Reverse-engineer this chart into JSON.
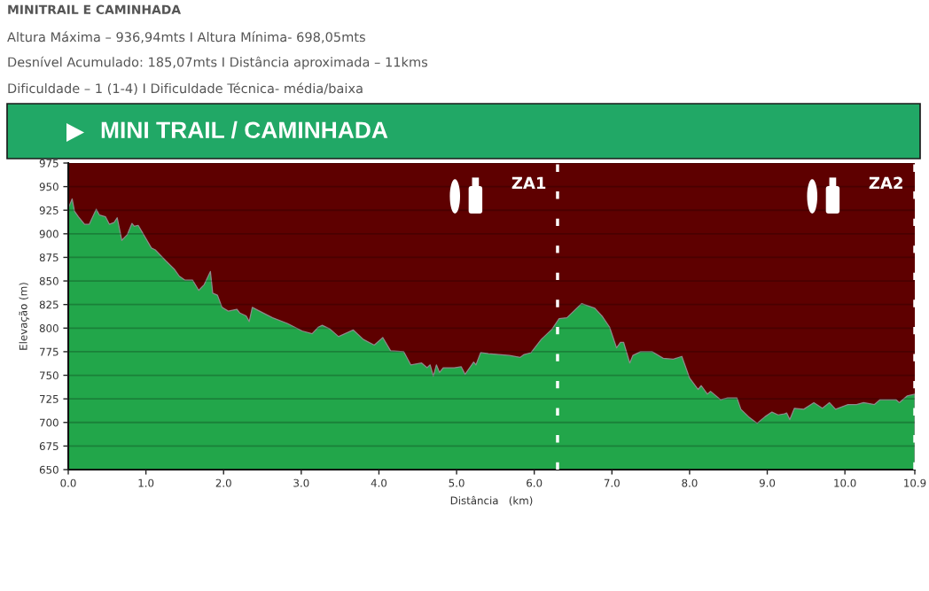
{
  "chart_data": {
    "type": "area",
    "title": "MINITRAIL E CAMINHADA",
    "subtitle": "MINI TRAIL / CAMINHADA",
    "annotations": [
      "Altura Máxima – 936,94mts I Altura Mínima- 698,05mts",
      "Desnível Acumulado: 185,07mts I Distância aproximada – 11kms",
      "Dificuldade – 1 (1-4) I Dificuldade Técnica- média/baixa"
    ],
    "xlabel": "Distância   (km)",
    "ylabel": "Elevação (m)",
    "x": [
      0.0,
      0.05,
      0.08,
      0.13,
      0.21,
      0.27,
      0.36,
      0.4,
      0.48,
      0.53,
      0.59,
      0.63,
      0.69,
      0.76,
      0.82,
      0.85,
      0.9,
      1.07,
      1.12,
      1.26,
      1.37,
      1.43,
      1.5,
      1.6,
      1.68,
      1.75,
      1.83,
      1.86,
      1.92,
      1.98,
      2.06,
      2.17,
      2.21,
      2.29,
      2.33,
      2.37,
      2.44,
      2.63,
      2.82,
      3.01,
      3.14,
      3.22,
      3.27,
      3.37,
      3.48,
      3.67,
      3.8,
      3.94,
      4.05,
      4.15,
      4.32,
      4.41,
      4.55,
      4.62,
      4.66,
      4.7,
      4.74,
      4.78,
      4.83,
      4.97,
      5.06,
      5.11,
      5.22,
      5.25,
      5.31,
      5.41,
      5.68,
      5.82,
      5.87,
      5.96,
      6.09,
      6.23,
      6.32,
      6.42,
      6.61,
      6.78,
      6.88,
      6.97,
      7.06,
      7.11,
      7.15,
      7.23,
      7.27,
      7.37,
      7.52,
      7.66,
      7.79,
      7.9,
      8.0,
      8.11,
      8.15,
      8.23,
      8.27,
      8.4,
      8.49,
      8.61,
      8.66,
      8.76,
      8.87,
      8.97,
      9.06,
      9.14,
      9.22,
      9.25,
      9.29,
      9.35,
      9.47,
      9.6,
      9.71,
      9.8,
      9.88,
      10.04,
      10.15,
      10.24,
      10.38,
      10.45,
      10.66,
      10.7,
      10.8,
      10.9
    ],
    "series": [
      {
        "color": "#22a64a",
        "values": [
          927,
          937,
          924,
          918,
          910,
          910,
          926,
          920,
          918,
          910,
          912,
          917,
          893,
          899,
          911,
          908,
          909,
          885,
          883,
          871,
          862,
          855,
          851,
          851,
          840,
          846,
          860,
          837,
          835,
          822,
          818,
          820,
          816,
          813,
          807,
          822,
          819,
          811,
          805,
          797,
          794,
          801,
          803,
          799,
          791,
          798,
          788,
          782,
          790,
          776,
          775,
          761,
          763,
          758,
          761,
          749,
          761,
          753,
          758,
          758,
          759,
          751,
          764,
          761,
          774,
          773,
          771,
          769,
          772,
          774,
          788,
          799,
          810,
          811,
          826,
          821,
          812,
          801,
          779,
          785,
          785,
          763,
          771,
          775,
          775,
          768,
          767,
          770,
          747,
          735,
          739,
          730,
          733,
          724,
          726,
          726,
          714,
          706,
          699,
          706,
          711,
          708,
          709,
          710,
          703,
          715,
          714,
          721,
          715,
          721,
          714,
          719,
          719,
          721,
          719,
          724,
          724,
          721,
          728,
          730
        ]
      }
    ],
    "xlim": [
      0,
      10.9
    ],
    "ylim": [
      650,
      975
    ],
    "xticks": [
      {
        "value": 0,
        "label": "0.0"
      },
      {
        "value": 1,
        "label": "1.0"
      },
      {
        "value": 2,
        "label": "2.0"
      },
      {
        "value": 3,
        "label": "3.0"
      },
      {
        "value": 4,
        "label": "4.0"
      },
      {
        "value": 5,
        "label": "5.0"
      },
      {
        "value": 6,
        "label": "6.0"
      },
      {
        "value": 7,
        "label": "7.0"
      },
      {
        "value": 8,
        "label": "8.0"
      },
      {
        "value": 9,
        "label": "9.0"
      },
      {
        "value": 10,
        "label": "10.0"
      },
      10.9
    ],
    "yticks": [
      650,
      675,
      700,
      725,
      750,
      775,
      800,
      825,
      850,
      875,
      900,
      925,
      950,
      975
    ],
    "grid": "y",
    "ref_lines": [
      {
        "axis": "x",
        "value": 6.3,
        "label": "ZA1",
        "color": "#ffffff",
        "line_style": "dashed"
      },
      {
        "axis": "x",
        "value": 10.9,
        "label": "ZA2",
        "color": "#ffffff",
        "line_style": "dashed"
      }
    ]
  }
}
